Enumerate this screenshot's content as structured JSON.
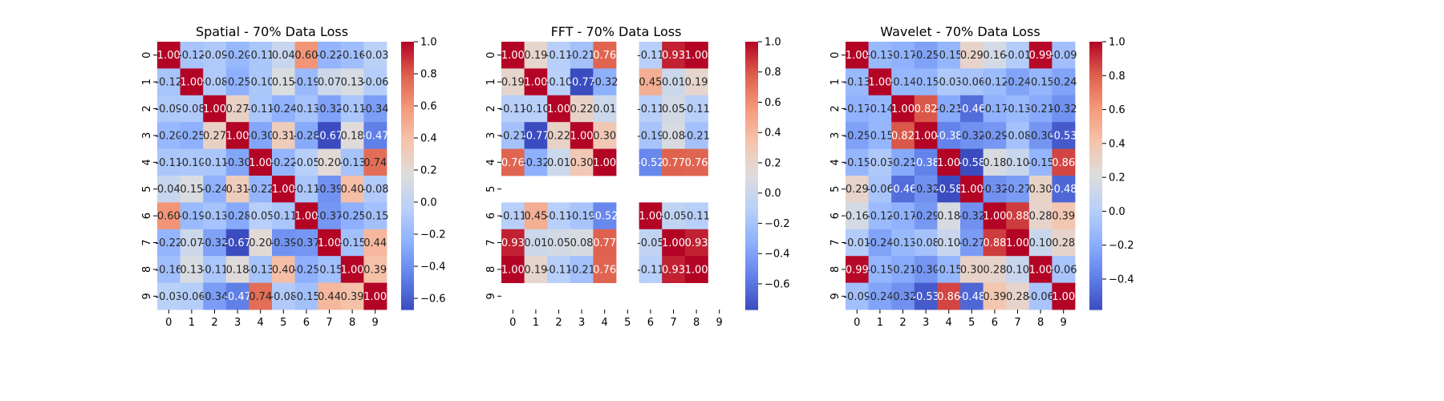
{
  "figure": {
    "background": "#ffffff"
  },
  "chart_data": [
    {
      "type": "heatmap",
      "title": "Spatial - 70% Data Loss",
      "xlabel": "",
      "ylabel": "",
      "row_labels": [
        "0",
        "1",
        "2",
        "3",
        "4",
        "5",
        "6",
        "7",
        "8",
        "9"
      ],
      "col_labels": [
        "0",
        "1",
        "2",
        "3",
        "4",
        "5",
        "6",
        "7",
        "8",
        "9"
      ],
      "colormap": "coolwarm",
      "vmin": -0.67,
      "vmax": 1.0,
      "colorbar_ticks": [
        "1.0",
        "0.8",
        "0.6",
        "0.4",
        "0.2",
        "0.0",
        "−0.2",
        "−0.4",
        "−0.6"
      ],
      "colorbar_tick_values": [
        1.0,
        0.8,
        0.6,
        0.4,
        0.2,
        0.0,
        -0.2,
        -0.4,
        -0.6
      ],
      "values": [
        [
          1.0,
          -0.12,
          -0.09,
          -0.2,
          -0.11,
          0.04,
          0.6,
          -0.22,
          -0.16,
          -0.03
        ],
        [
          -0.12,
          1.0,
          -0.08,
          -0.25,
          -0.1,
          0.15,
          -0.19,
          0.07,
          0.13,
          -0.06
        ],
        [
          -0.09,
          -0.08,
          1.0,
          0.27,
          -0.11,
          -0.24,
          -0.13,
          -0.32,
          -0.11,
          -0.34
        ],
        [
          -0.2,
          -0.25,
          0.27,
          1.0,
          -0.3,
          0.31,
          -0.28,
          -0.67,
          0.18,
          -0.47
        ],
        [
          -0.11,
          -0.1,
          -0.11,
          -0.3,
          1.0,
          -0.22,
          -0.05,
          0.2,
          -0.13,
          0.74
        ],
        [
          0.04,
          0.15,
          -0.24,
          0.31,
          -0.22,
          1.0,
          -0.11,
          -0.39,
          0.4,
          -0.08
        ],
        [
          0.6,
          -0.19,
          -0.13,
          -0.28,
          -0.05,
          -0.11,
          1.0,
          -0.37,
          -0.25,
          -0.15
        ],
        [
          -0.22,
          0.07,
          -0.32,
          -0.67,
          0.2,
          -0.39,
          -0.37,
          1.0,
          -0.15,
          0.44
        ],
        [
          -0.16,
          0.13,
          -0.11,
          0.18,
          -0.13,
          0.4,
          -0.25,
          -0.15,
          1.0,
          0.39
        ],
        [
          -0.03,
          -0.06,
          -0.34,
          -0.47,
          0.74,
          -0.08,
          -0.15,
          0.44,
          0.39,
          1.0
        ]
      ]
    },
    {
      "type": "heatmap",
      "title": "FFT - 70% Data Loss",
      "xlabel": "",
      "ylabel": "",
      "row_labels": [
        "0",
        "1",
        "2",
        "3",
        "4",
        "5",
        "6",
        "7",
        "8",
        "9"
      ],
      "col_labels": [
        "0",
        "1",
        "2",
        "3",
        "4",
        "5",
        "6",
        "7",
        "8",
        "9"
      ],
      "colormap": "coolwarm",
      "vmin": -0.77,
      "vmax": 1.0,
      "colorbar_ticks": [
        "1.0",
        "0.8",
        "0.6",
        "0.4",
        "0.2",
        "0.0",
        "−0.2",
        "−0.4",
        "−0.6"
      ],
      "colorbar_tick_values": [
        1.0,
        0.8,
        0.6,
        0.4,
        0.2,
        0.0,
        -0.2,
        -0.4,
        -0.6
      ],
      "values": [
        [
          1.0,
          0.19,
          -0.11,
          -0.21,
          0.76,
          null,
          -0.11,
          0.93,
          1.0,
          null
        ],
        [
          0.19,
          1.0,
          -0.1,
          -0.77,
          -0.32,
          null,
          0.45,
          0.01,
          0.19,
          null
        ],
        [
          -0.11,
          -0.1,
          1.0,
          0.22,
          0.01,
          null,
          -0.11,
          0.05,
          -0.11,
          null
        ],
        [
          -0.21,
          -0.77,
          0.22,
          1.0,
          0.3,
          null,
          -0.19,
          0.08,
          -0.21,
          null
        ],
        [
          0.76,
          -0.32,
          0.01,
          0.3,
          1.0,
          null,
          -0.52,
          0.77,
          0.76,
          null
        ],
        [
          null,
          null,
          null,
          null,
          null,
          null,
          null,
          null,
          null,
          null
        ],
        [
          -0.11,
          0.45,
          -0.11,
          -0.19,
          -0.52,
          null,
          1.0,
          -0.05,
          -0.11,
          null
        ],
        [
          0.93,
          0.01,
          0.05,
          0.08,
          0.77,
          null,
          -0.05,
          1.0,
          0.93,
          null
        ],
        [
          1.0,
          0.19,
          -0.11,
          -0.21,
          0.76,
          null,
          -0.11,
          0.93,
          1.0,
          null
        ],
        [
          null,
          null,
          null,
          null,
          null,
          null,
          null,
          null,
          null,
          null
        ]
      ]
    },
    {
      "type": "heatmap",
      "title": "Wavelet - 70% Data Loss",
      "xlabel": "",
      "ylabel": "",
      "row_labels": [
        "0",
        "1",
        "2",
        "3",
        "4",
        "5",
        "6",
        "7",
        "8",
        "9"
      ],
      "col_labels": [
        "0",
        "1",
        "2",
        "3",
        "4",
        "5",
        "6",
        "7",
        "8",
        "9"
      ],
      "colormap": "coolwarm",
      "vmin": -0.58,
      "vmax": 1.0,
      "colorbar_ticks": [
        "1.0",
        "0.8",
        "0.6",
        "0.4",
        "0.2",
        "0.0",
        "−0.2",
        "−0.4"
      ],
      "colorbar_tick_values": [
        1.0,
        0.8,
        0.6,
        0.4,
        0.2,
        0.0,
        -0.2,
        -0.4
      ],
      "values": [
        [
          1.0,
          -0.13,
          -0.17,
          -0.25,
          -0.15,
          0.29,
          0.16,
          -0.01,
          0.99,
          -0.09
        ],
        [
          -0.13,
          1.0,
          -0.14,
          -0.15,
          -0.03,
          -0.06,
          -0.12,
          -0.24,
          -0.15,
          -0.24
        ],
        [
          -0.17,
          -0.14,
          1.0,
          0.82,
          -0.21,
          -0.46,
          -0.17,
          -0.13,
          -0.21,
          -0.32
        ],
        [
          -0.25,
          -0.15,
          0.82,
          1.0,
          -0.38,
          -0.32,
          -0.29,
          -0.08,
          -0.3,
          -0.53
        ],
        [
          -0.15,
          -0.03,
          -0.21,
          -0.38,
          1.0,
          -0.58,
          0.18,
          0.1,
          -0.15,
          0.86
        ],
        [
          0.29,
          -0.06,
          -0.46,
          -0.32,
          -0.58,
          1.0,
          -0.32,
          -0.27,
          0.3,
          -0.48
        ],
        [
          0.16,
          -0.12,
          -0.17,
          -0.29,
          0.18,
          -0.32,
          1.0,
          0.88,
          0.28,
          0.39
        ],
        [
          -0.01,
          -0.24,
          -0.13,
          -0.08,
          0.1,
          -0.27,
          0.88,
          1.0,
          0.1,
          0.28
        ],
        [
          0.99,
          -0.15,
          -0.21,
          -0.3,
          -0.15,
          0.3,
          0.28,
          0.1,
          1.0,
          -0.06
        ],
        [
          -0.09,
          -0.24,
          -0.32,
          -0.53,
          0.86,
          -0.48,
          0.39,
          0.28,
          -0.06,
          1.0
        ]
      ]
    }
  ]
}
